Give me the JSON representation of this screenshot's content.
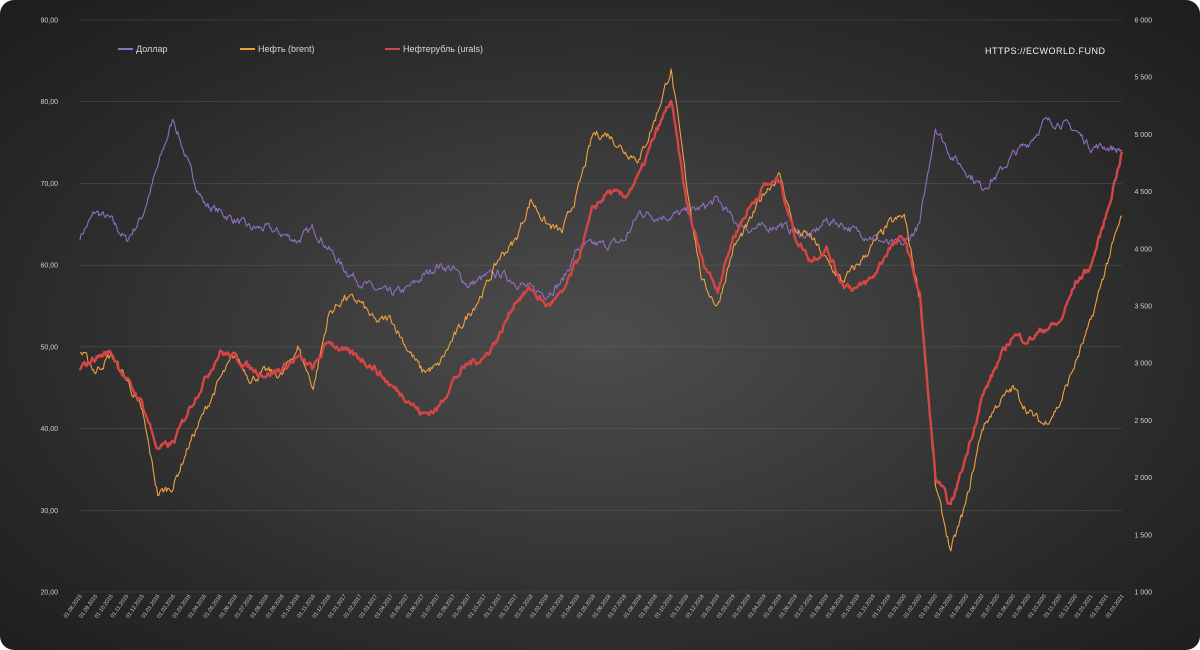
{
  "watermark": "HTTPS://ECWORLD.FUND",
  "chart_data": {
    "type": "line",
    "title": "",
    "grid": true,
    "legend_placement": "top-left",
    "left_axis": {
      "ylim": [
        20,
        90
      ],
      "tick_labels": [
        "20,00",
        "30,00",
        "40,00",
        "50,00",
        "60,00",
        "70,00",
        "80,00",
        "90,00"
      ],
      "tick_values": [
        20,
        30,
        40,
        50,
        60,
        70,
        80,
        90
      ]
    },
    "right_axis": {
      "ylim": [
        1000,
        6000
      ],
      "tick_labels": [
        "1 000",
        "1 500",
        "2 000",
        "2 500",
        "3 000",
        "3 500",
        "4 000",
        "4 500",
        "5 000",
        "5 500",
        "6 000"
      ],
      "tick_values": [
        1000,
        1500,
        2000,
        2500,
        3000,
        3500,
        4000,
        4500,
        5000,
        5500,
        6000
      ]
    },
    "x_tick_labels": [
      "01.08.2015",
      "01.09.2015",
      "01.10.2015",
      "01.11.2015",
      "01.12.2015",
      "01.01.2016",
      "01.02.2016",
      "01.03.2016",
      "01.04.2016",
      "01.05.2016",
      "01.06.2016",
      "01.07.2016",
      "01.08.2016",
      "01.09.2016",
      "01.10.2016",
      "01.11.2016",
      "01.12.2016",
      "01.01.2017",
      "01.02.2017",
      "01.03.2017",
      "01.04.2017",
      "01.05.2017",
      "01.06.2017",
      "01.07.2017",
      "01.08.2017",
      "01.09.2017",
      "01.10.2017",
      "01.11.2017",
      "01.12.2017",
      "01.01.2018",
      "01.02.2018",
      "01.03.2018",
      "01.04.2018",
      "01.05.2018",
      "01.06.2018",
      "01.07.2018",
      "01.08.2018",
      "01.09.2018",
      "01.10.2018",
      "01.11.2018",
      "01.12.2018",
      "01.01.2019",
      "01.02.2019",
      "01.03.2019",
      "01.04.2019",
      "01.05.2019",
      "01.06.2019",
      "01.07.2019",
      "01.08.2019",
      "01.09.2019",
      "01.10.2019",
      "01.11.2019",
      "01.12.2019",
      "01.01.2020",
      "01.02.2020",
      "01.03.2020",
      "01.04.2020",
      "01.05.2020",
      "01.06.2020",
      "01.07.2020",
      "01.08.2020",
      "01.09.2020",
      "01.10.2020",
      "01.11.2020",
      "01.12.2020",
      "01.01.2021",
      "01.02.2021",
      "01.03.2021"
    ],
    "series": [
      {
        "name": "Доллар",
        "axis": "left",
        "color": "#8e6fc0",
        "values": [
          63.5,
          66.5,
          65.5,
          63.0,
          66.0,
          72.0,
          78.0,
          72.0,
          67.5,
          66.5,
          65.5,
          64.5,
          64.5,
          63.8,
          63.0,
          64.5,
          62.0,
          59.5,
          58.0,
          57.0,
          56.5,
          57.0,
          58.5,
          60.0,
          59.5,
          57.5,
          58.5,
          59.0,
          58.0,
          57.0,
          56.5,
          58.0,
          62.0,
          62.5,
          62.5,
          63.0,
          66.5,
          66.0,
          66.0,
          66.5,
          67.0,
          68.0,
          65.5,
          64.5,
          64.5,
          65.0,
          64.0,
          63.5,
          65.5,
          65.0,
          64.0,
          63.5,
          62.5,
          62.5,
          65.0,
          77.0,
          73.5,
          71.5,
          69.5,
          71.0,
          73.5,
          75.0,
          77.5,
          77.5,
          76.5,
          74.5,
          74.5,
          74.0
        ]
      },
      {
        "name": "Нефть (brent)",
        "axis": "left",
        "color": "#f0a040",
        "values": [
          49.5,
          47.0,
          49.0,
          46.0,
          42.0,
          32.0,
          33.0,
          38.0,
          42.0,
          46.0,
          49.0,
          46.0,
          47.0,
          46.5,
          50.0,
          45.0,
          54.0,
          56.0,
          55.5,
          53.0,
          53.5,
          50.0,
          47.0,
          47.5,
          51.0,
          54.0,
          57.0,
          61.0,
          63.0,
          68.0,
          65.0,
          64.0,
          69.0,
          76.0,
          76.0,
          74.0,
          73.0,
          78.0,
          84.0,
          70.0,
          58.0,
          55.0,
          62.0,
          65.0,
          69.0,
          71.0,
          64.0,
          63.5,
          60.5,
          58.0,
          60.0,
          62.5,
          65.0,
          66.0,
          56.0,
          33.0,
          25.0,
          31.0,
          40.0,
          43.0,
          45.0,
          42.0,
          40.5,
          43.0,
          48.0,
          53.0,
          60.0,
          66.0
        ]
      },
      {
        "name": "Нефтерубль (urals)",
        "axis": "right",
        "color": "#d64545",
        "values": [
          2950,
          3050,
          3100,
          2850,
          2650,
          2250,
          2300,
          2600,
          2850,
          3100,
          3050,
          2950,
          2900,
          2950,
          3050,
          2950,
          3200,
          3100,
          3050,
          2950,
          2800,
          2700,
          2550,
          2600,
          2850,
          3000,
          3050,
          3250,
          3550,
          3650,
          3500,
          3600,
          3900,
          4350,
          4500,
          4450,
          4650,
          5000,
          5300,
          4400,
          3900,
          3650,
          4100,
          4350,
          4550,
          4600,
          4100,
          3900,
          4000,
          3700,
          3650,
          3750,
          4000,
          4100,
          3600,
          2000,
          1750,
          2200,
          2700,
          3000,
          3250,
          3200,
          3300,
          3350,
          3700,
          3850,
          4300,
          4850
        ]
      }
    ]
  }
}
